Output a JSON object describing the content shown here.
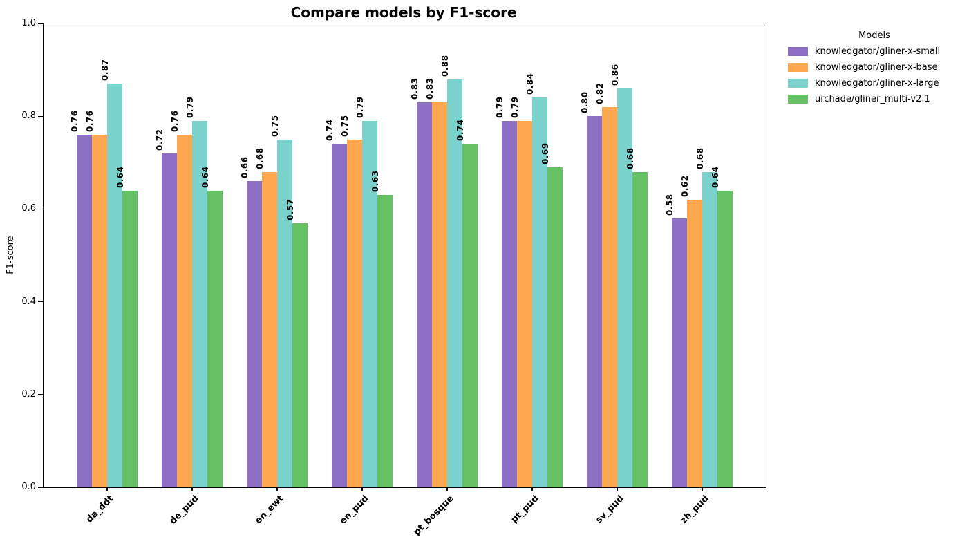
{
  "chart_data": {
    "type": "bar",
    "title": "Compare models by F1-score",
    "xlabel": "",
    "ylabel": "F1-score",
    "ylim": [
      0.0,
      1.0
    ],
    "yticks": [
      "0.0",
      "0.2",
      "0.4",
      "0.6",
      "0.8",
      "1.0"
    ],
    "grid": false,
    "bar_value_labels": true,
    "categories": [
      "da_ddt",
      "de_pud",
      "en_ewt",
      "en_pud",
      "pt_bosque",
      "pt_pud",
      "sv_pud",
      "zh_pud"
    ],
    "series": [
      {
        "name": "knowledgator/gliner-x-small",
        "color": "#8d6fc3",
        "values": [
          0.76,
          0.72,
          0.66,
          0.74,
          0.83,
          0.79,
          0.8,
          0.58
        ]
      },
      {
        "name": "knowledgator/gliner-x-base",
        "color": "#fda84e",
        "values": [
          0.76,
          0.76,
          0.68,
          0.75,
          0.83,
          0.79,
          0.82,
          0.62
        ]
      },
      {
        "name": "knowledgator/gliner-x-large",
        "color": "#7bd1cc",
        "values": [
          0.87,
          0.79,
          0.75,
          0.79,
          0.88,
          0.84,
          0.86,
          0.68
        ]
      },
      {
        "name": "urchade/gliner_multi-v2.1",
        "color": "#66c164",
        "values": [
          0.64,
          0.64,
          0.57,
          0.63,
          0.74,
          0.69,
          0.68,
          0.64
        ]
      }
    ],
    "legend": {
      "title": "Models",
      "position": "outside-upper-right"
    }
  }
}
